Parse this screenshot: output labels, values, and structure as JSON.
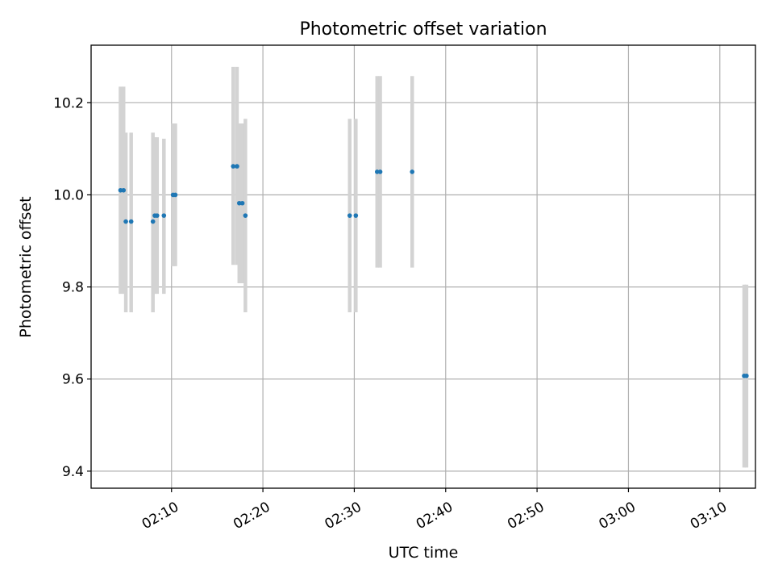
{
  "chart_data": {
    "type": "scatter",
    "title": "Photometric offset variation",
    "xlabel": "UTC time",
    "ylabel": "Photometric offset",
    "x_unit": "HH:MM",
    "xlim": [
      "02:01:12",
      "03:13:54"
    ],
    "ylim": [
      9.363,
      10.325
    ],
    "xticks": [
      "02:10",
      "02:20",
      "02:30",
      "02:40",
      "02:50",
      "03:00",
      "03:10"
    ],
    "yticks": [
      9.4,
      9.6,
      9.8,
      10.0,
      10.2
    ],
    "grid": true,
    "point_color": "#1f77b4",
    "errorbar_color": "#d3d3d3",
    "points": [
      {
        "t": "02:04:25",
        "y": 10.01,
        "lo": 9.785,
        "hi": 10.235
      },
      {
        "t": "02:04:45",
        "y": 10.01,
        "lo": 9.785,
        "hi": 10.235
      },
      {
        "t": "02:05:00",
        "y": 9.942,
        "lo": 9.745,
        "hi": 10.135
      },
      {
        "t": "02:05:35",
        "y": 9.942,
        "lo": 9.745,
        "hi": 10.135
      },
      {
        "t": "02:07:58",
        "y": 9.942,
        "lo": 9.745,
        "hi": 10.135
      },
      {
        "t": "02:08:10",
        "y": 9.955,
        "lo": 9.785,
        "hi": 10.125
      },
      {
        "t": "02:08:25",
        "y": 9.955,
        "lo": 9.785,
        "hi": 10.125
      },
      {
        "t": "02:09:10",
        "y": 9.955,
        "lo": 9.785,
        "hi": 10.122
      },
      {
        "t": "02:10:10",
        "y": 10.0,
        "lo": 9.845,
        "hi": 10.155
      },
      {
        "t": "02:10:25",
        "y": 10.0,
        "lo": 9.845,
        "hi": 10.155
      },
      {
        "t": "02:16:45",
        "y": 10.062,
        "lo": 9.848,
        "hi": 10.278
      },
      {
        "t": "02:17:10",
        "y": 10.062,
        "lo": 9.848,
        "hi": 10.278
      },
      {
        "t": "02:17:25",
        "y": 9.982,
        "lo": 9.808,
        "hi": 10.155
      },
      {
        "t": "02:17:45",
        "y": 9.982,
        "lo": 9.808,
        "hi": 10.155
      },
      {
        "t": "02:18:05",
        "y": 9.955,
        "lo": 9.745,
        "hi": 10.165
      },
      {
        "t": "02:29:30",
        "y": 9.955,
        "lo": 9.745,
        "hi": 10.165
      },
      {
        "t": "02:30:10",
        "y": 9.955,
        "lo": 9.745,
        "hi": 10.165
      },
      {
        "t": "02:32:30",
        "y": 10.05,
        "lo": 9.842,
        "hi": 10.258
      },
      {
        "t": "02:32:50",
        "y": 10.05,
        "lo": 9.842,
        "hi": 10.258
      },
      {
        "t": "02:36:20",
        "y": 10.05,
        "lo": 9.842,
        "hi": 10.258
      },
      {
        "t": "03:12:40",
        "y": 9.607,
        "lo": 9.408,
        "hi": 9.805
      },
      {
        "t": "03:12:55",
        "y": 9.607,
        "lo": 9.408,
        "hi": 9.805
      }
    ]
  }
}
